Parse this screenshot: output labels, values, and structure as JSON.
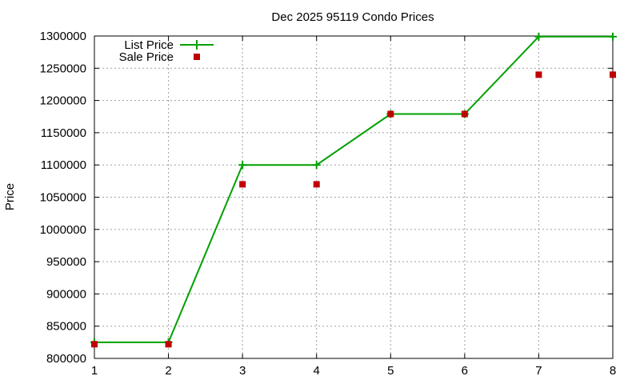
{
  "chart_data": {
    "type": "line",
    "title": "Dec 2025 95119 Condo Prices",
    "xlabel": "",
    "ylabel": "Price",
    "xlim": [
      1,
      8
    ],
    "ylim": [
      800000,
      1300000
    ],
    "xticks": [
      "1",
      "2",
      "3",
      "4",
      "5",
      "6",
      "7",
      "8"
    ],
    "yticks": [
      "800000",
      "850000",
      "900000",
      "950000",
      "1000000",
      "1050000",
      "1100000",
      "1150000",
      "1200000",
      "1250000",
      "1300000"
    ],
    "grid": true,
    "legend_position": "top-left",
    "series": [
      {
        "name": "List Price",
        "style": "linespoints",
        "color": "#00a000",
        "marker": "plus",
        "x": [
          1,
          2,
          3,
          4,
          5,
          6,
          7,
          8
        ],
        "y": [
          825000,
          825000,
          1100000,
          1100000,
          1179000,
          1179000,
          1299000,
          1299000
        ]
      },
      {
        "name": "Sale Price",
        "style": "points",
        "color": "#c00000",
        "marker": "square",
        "x": [
          1,
          2,
          3,
          4,
          5,
          6,
          7,
          8
        ],
        "y": [
          822000,
          822000,
          1070000,
          1070000,
          1179000,
          1179000,
          1240000,
          1240000
        ]
      }
    ]
  }
}
